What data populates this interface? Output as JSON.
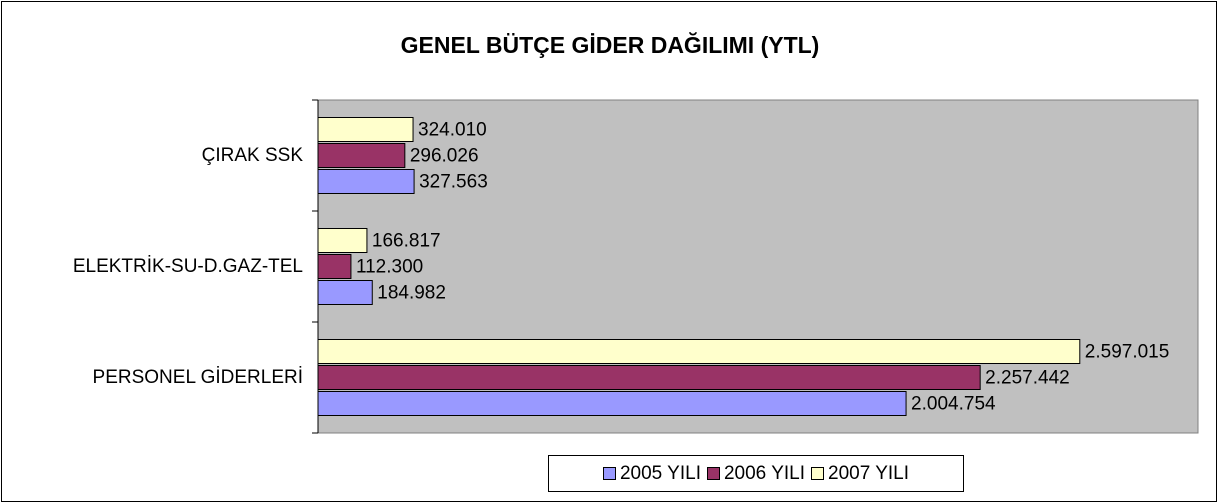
{
  "chart_data": {
    "type": "bar",
    "orientation": "horizontal",
    "title": "GENEL BÜTÇE GİDER DAĞILIMI (YTL)",
    "categories": [
      "ÇIRAK SSK",
      "ELEKTRİK-SU-D.GAZ-TEL",
      "PERSONEL GİDERLERİ"
    ],
    "series": [
      {
        "name": "2005 YILI",
        "color": "#9999ff",
        "values": [
          327563,
          184982,
          2004754
        ],
        "value_labels": [
          "327.563",
          "184.982",
          "2.004.754"
        ]
      },
      {
        "name": "2006 YILI",
        "color": "#993366",
        "values": [
          296026,
          112300,
          2257442
        ],
        "value_labels": [
          "296.026",
          "112.300",
          "2.257.442"
        ]
      },
      {
        "name": "2007 YILI",
        "color": "#ffffcc",
        "values": [
          324010,
          166817,
          2597015
        ],
        "value_labels": [
          "324.010",
          "166.817",
          "2.597.015"
        ]
      }
    ],
    "xlim": [
      0,
      3000000
    ],
    "legend": "bottom"
  }
}
